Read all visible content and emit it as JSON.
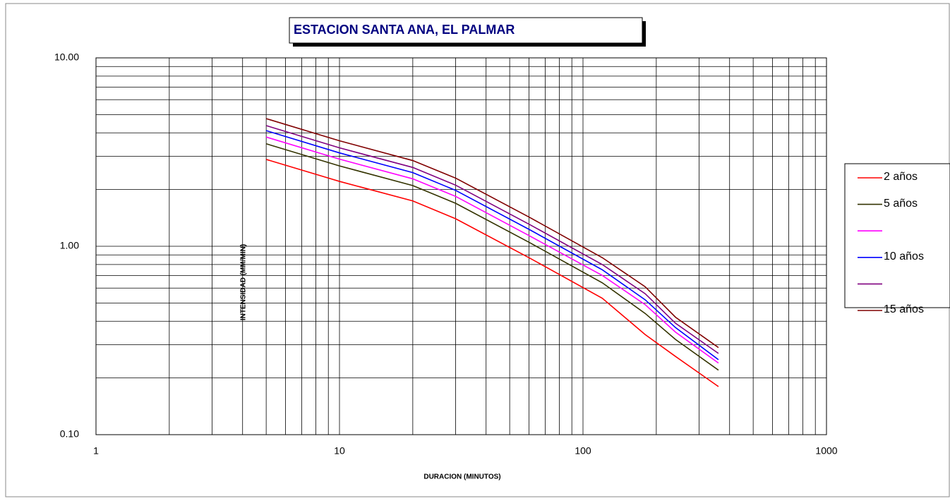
{
  "chart_data": {
    "type": "line",
    "title": "ESTACION SANTA ANA, EL PALMAR",
    "x_label": "DURACION (MINUTOS)",
    "y_label": "INTENSIDAD (MM/MIN)",
    "log_x": true,
    "log_y": true,
    "grid": true,
    "xlim": [
      1,
      1000
    ],
    "xticks": [
      1,
      10,
      100,
      1000
    ],
    "ylim": [
      0.1,
      10
    ],
    "yticks": [
      {
        "value": 0.1,
        "label": "0.10"
      },
      {
        "value": 1,
        "label": "1.00"
      },
      {
        "value": 10,
        "label": "10.00"
      }
    ],
    "x": [
      5,
      10,
      20,
      30,
      60,
      120,
      180,
      240,
      360
    ],
    "series": [
      {
        "name": "2 años",
        "color": "#ff0000",
        "values": [
          2.89,
          2.21,
          1.74,
          1.4,
          0.87,
          0.53,
          0.34,
          0.26,
          0.18
        ]
      },
      {
        "name": "5 años",
        "color": "#333300",
        "values": [
          3.5,
          2.67,
          2.1,
          1.69,
          1.05,
          0.64,
          0.44,
          0.32,
          0.22
        ]
      },
      {
        "name": null,
        "color": "#ff00ff",
        "values": [
          3.8,
          2.9,
          2.28,
          1.84,
          1.14,
          0.7,
          0.49,
          0.35,
          0.24
        ]
      },
      {
        "name": "10 años",
        "color": "#0000ff",
        "values": [
          4.11,
          3.13,
          2.46,
          1.98,
          1.23,
          0.75,
          0.52,
          0.37,
          0.25
        ]
      },
      {
        "name": null,
        "color": "#800080",
        "values": [
          4.37,
          3.33,
          2.62,
          2.11,
          1.31,
          0.8,
          0.56,
          0.39,
          0.27
        ]
      },
      {
        "name": "15 años",
        "color": "#800000",
        "values": [
          4.76,
          3.63,
          2.85,
          2.3,
          1.43,
          0.87,
          0.61,
          0.42,
          0.29
        ]
      }
    ]
  }
}
